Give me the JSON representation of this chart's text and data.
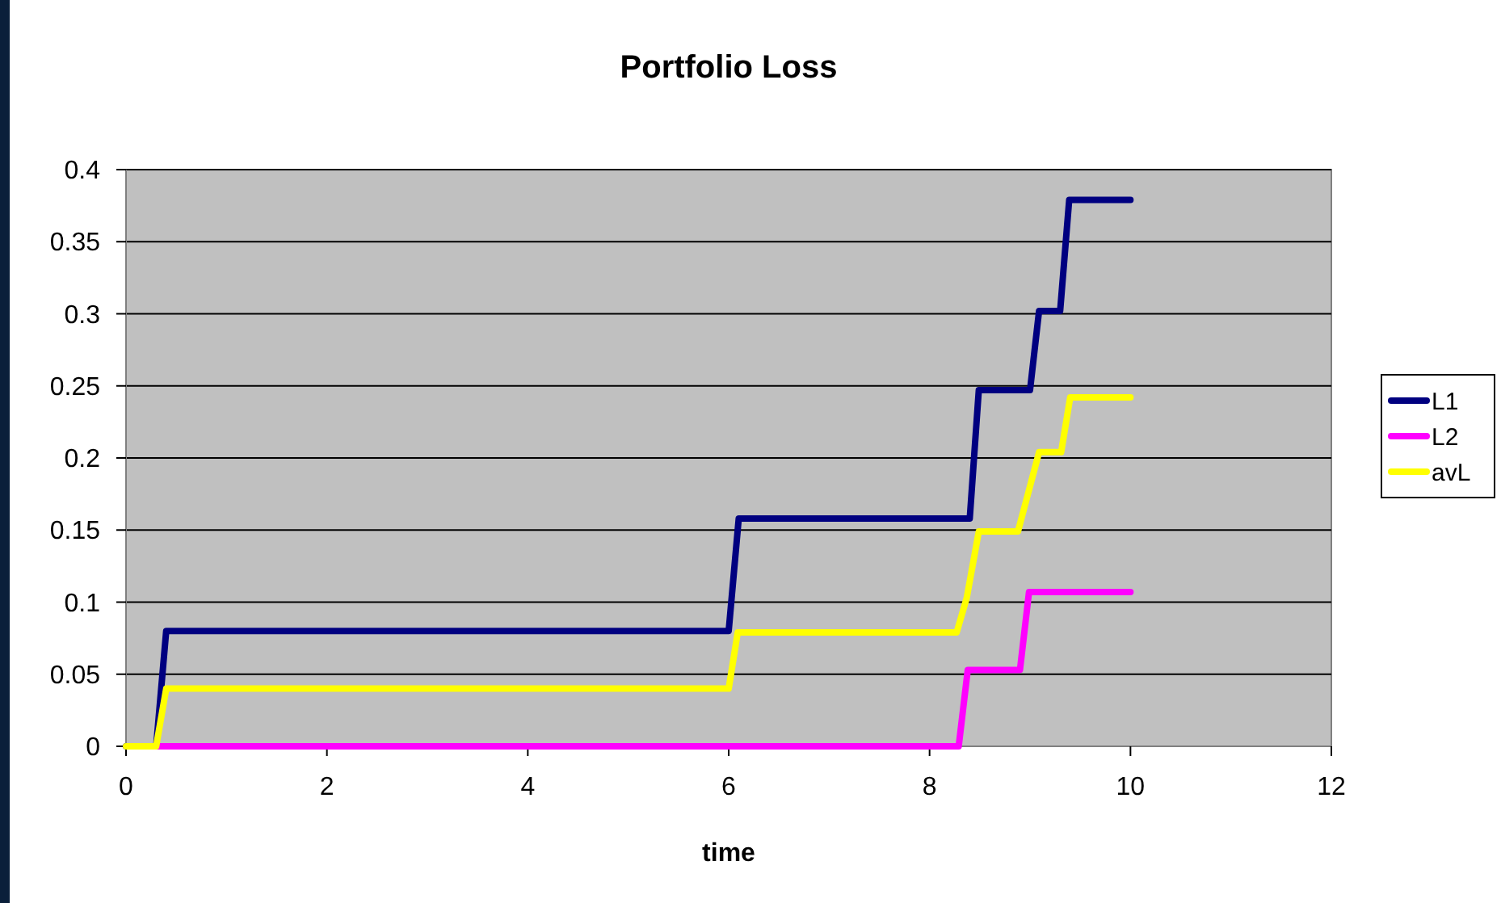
{
  "chart_data": {
    "type": "line",
    "title": "Portfolio Loss",
    "xlabel": "time",
    "xlim": [
      0,
      12
    ],
    "xticks": [
      0,
      2,
      4,
      6,
      8,
      10,
      12
    ],
    "ylim": [
      0,
      0.4
    ],
    "yticks": [
      0,
      0.05,
      0.1,
      0.15,
      0.2,
      0.25,
      0.3,
      0.35,
      0.4
    ],
    "grid": "y",
    "legend": "right",
    "marker": "none",
    "line_style": "solid",
    "series": [
      {
        "name": "L1",
        "color": "#000080",
        "x": [
          0,
          0.3,
          0.4,
          6.0,
          6.1,
          8.4,
          8.49,
          9.0,
          9.09,
          9.3,
          9.39,
          10
        ],
        "values": [
          0,
          0,
          0.08,
          0.08,
          0.158,
          0.158,
          0.247,
          0.247,
          0.302,
          0.302,
          0.379,
          0.379
        ]
      },
      {
        "name": "L2",
        "color": "#ff00ff",
        "x": [
          0.3,
          8.29,
          8.38,
          8.9,
          8.99,
          10
        ],
        "values": [
          0,
          0,
          0.053,
          0.053,
          0.107,
          0.107
        ]
      },
      {
        "name": "avL",
        "color": "#ffff00",
        "x": [
          0,
          0.3,
          0.4,
          6.0,
          6.09,
          8.27,
          8.37,
          8.49,
          8.88,
          9.09,
          9.31,
          9.4,
          10
        ],
        "values": [
          0,
          0,
          0.04,
          0.04,
          0.079,
          0.079,
          0.103,
          0.149,
          0.149,
          0.204,
          0.204,
          0.242,
          0.242
        ]
      }
    ]
  }
}
